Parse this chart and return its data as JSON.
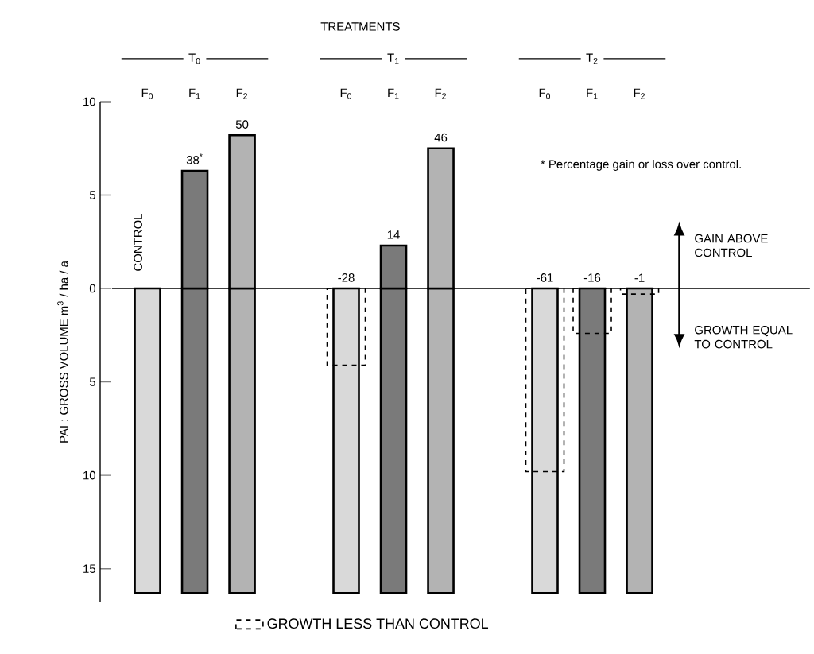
{
  "chart_data": {
    "type": "bar",
    "title": "TREATMENTS",
    "ylabel": "PAI : GROSS VOLUME  m$^{3}$ / ha / a",
    "categories": [
      "F$_{0}$",
      "F$_{1}$",
      "F$_{2}$",
      "F$_{0}$",
      "F$_{1}$",
      "F$_{2}$",
      "F$_{0}$",
      "F$_{1}$",
      "F$_{2}$"
    ],
    "ylim": [
      -16.8,
      10
    ],
    "yticks": [
      10,
      5,
      0,
      {
        "value": -5,
        "label": "5"
      },
      {
        "value": -10,
        "label": "10"
      },
      {
        "value": -15,
        "label": "15"
      }
    ],
    "series": [
      {
        "values": [
          -16.3,
          -16.3,
          -16.3,
          -16.3,
          -16.3,
          -16.3,
          -16.3,
          -16.3,
          -16.3
        ],
        "colors": [
          "#d9d9d9",
          "#7a7a7a",
          "#b3b3b3",
          "#d9d9d9",
          "#7a7a7a",
          "#b3b3b3",
          "#d9d9d9",
          "#7a7a7a",
          "#b3b3b3"
        ]
      },
      {
        "values": [
          null,
          6.3,
          8.2,
          null,
          2.3,
          7.5,
          null,
          null,
          null
        ],
        "colors": [
          null,
          "#7a7a7a",
          "#b3b3b3",
          null,
          "#7a7a7a",
          "#b3b3b3",
          null,
          null,
          null
        ]
      },
      {
        "name": "GROWTH LESS THAN CONTROL",
        "color": "#000000",
        "line_style": "dashed",
        "values": [
          null,
          null,
          null,
          -4.1,
          null,
          null,
          -9.8,
          -2.4,
          -0.3
        ]
      }
    ],
    "ref_lines": [
      {
        "axis": "y",
        "value": 0
      }
    ],
    "legend": "bottom",
    "annotations": [
      "T$_{0}$",
      "T$_{1}$",
      "T$_{2}$",
      "CONTROL",
      "* Percentage gain or loss over control.",
      "GAIN ABOVE CONTROL",
      "GROWTH EQUAL TO CONTROL",
      "38$^{*}$",
      "50",
      "-28",
      "14",
      "46",
      "-61",
      "-16",
      "-1"
    ]
  }
}
